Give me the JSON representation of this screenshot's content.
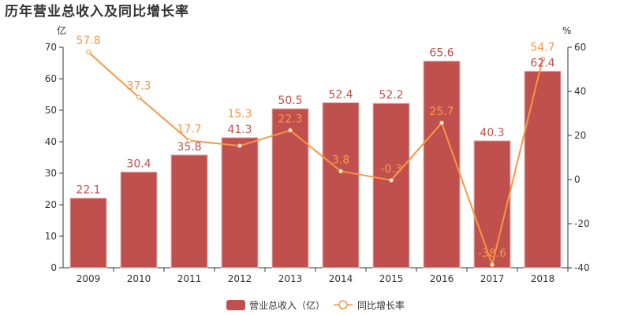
{
  "chart_data": {
    "type": "bar+line",
    "title": "历年营业总收入及同比增长率",
    "categories": [
      "2009",
      "2010",
      "2011",
      "2012",
      "2013",
      "2014",
      "2015",
      "2016",
      "2017",
      "2018"
    ],
    "series": [
      {
        "name": "营业总收入（亿）",
        "type": "bar",
        "axis": "left",
        "color": "#c0504d",
        "values": [
          22.1,
          30.4,
          35.8,
          41.3,
          50.5,
          52.4,
          52.2,
          65.6,
          40.3,
          62.4
        ]
      },
      {
        "name": "同比增长率",
        "type": "line",
        "axis": "right",
        "color": "#f79646",
        "values": [
          57.8,
          37.3,
          17.7,
          15.3,
          22.3,
          3.8,
          -0.3,
          25.7,
          -38.6,
          54.7
        ]
      }
    ],
    "left_axis": {
      "unit": "亿",
      "range": [
        0,
        70
      ],
      "ticks": [
        0,
        10,
        20,
        30,
        40,
        50,
        60,
        70
      ]
    },
    "right_axis": {
      "unit": "%",
      "range": [
        -40,
        60
      ],
      "ticks": [
        -40,
        -20,
        0,
        20,
        40,
        60
      ]
    },
    "grid": false,
    "legend": "bottom"
  }
}
